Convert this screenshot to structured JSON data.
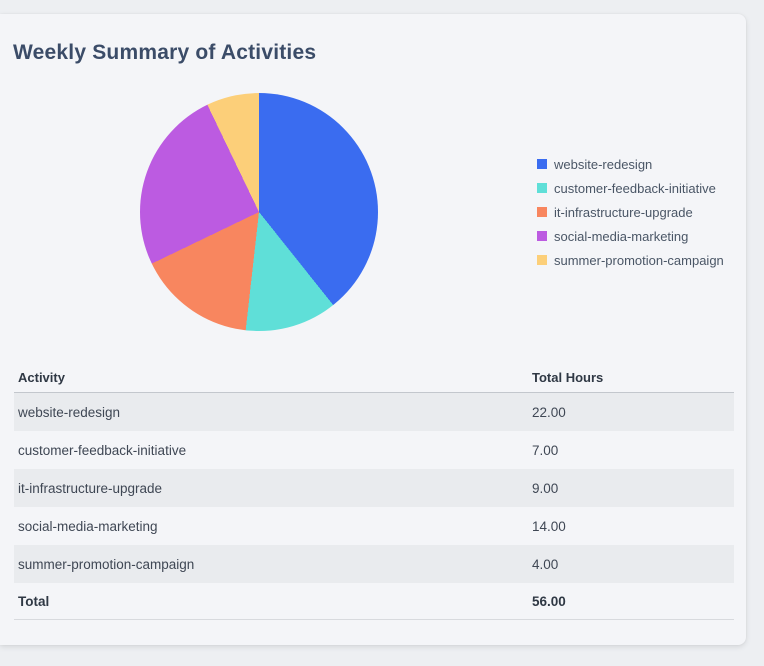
{
  "page": {
    "title": "Weekly Summary of Activities"
  },
  "chart_data": {
    "type": "pie",
    "labels": [
      "website-redesign",
      "customer-feedback-initiative",
      "it-infrastructure-upgrade",
      "social-media-marketing",
      "summer-promotion-campaign"
    ],
    "values": [
      22,
      7,
      9,
      14,
      4
    ],
    "colors": [
      "#3a6cf0",
      "#5fdfd8",
      "#f8865f",
      "#bc5be1",
      "#fccf79"
    ],
    "start_angle_deg": 0,
    "direction": "clockwise",
    "legend_position": "right",
    "total": 56
  },
  "table": {
    "headers": [
      "Activity",
      "Total Hours"
    ],
    "rows": [
      [
        "website-redesign",
        "22.00"
      ],
      [
        "customer-feedback-initiative",
        "7.00"
      ],
      [
        "it-infrastructure-upgrade",
        "9.00"
      ],
      [
        "social-media-marketing",
        "14.00"
      ],
      [
        "summer-promotion-campaign",
        "4.00"
      ]
    ],
    "total_row": [
      "Total",
      "56.00"
    ]
  }
}
